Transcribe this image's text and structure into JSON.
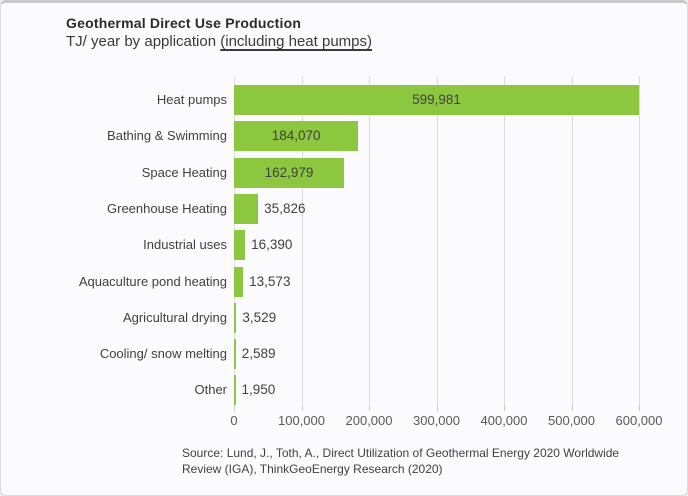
{
  "header": {
    "title": "Geothermal Direct Use Production",
    "subtitle_prefix": "TJ/ year by application ",
    "subtitle_underlined": "(including heat pumps)"
  },
  "chart_data": {
    "type": "bar",
    "orientation": "horizontal",
    "title": "Geothermal Direct Use Production",
    "subtitle": "TJ/ year by application (including heat pumps)",
    "xlabel": "",
    "ylabel": "",
    "categories": [
      "Heat pumps",
      "Bathing & Swimming",
      "Space Heating",
      "Greenhouse Heating",
      "Industrial uses",
      "Aquaculture pond heating",
      "Agricultural drying",
      "Cooling/ snow melting",
      "Other"
    ],
    "values": [
      599981,
      184070,
      162979,
      35826,
      16390,
      13573,
      3529,
      2589,
      1950
    ],
    "value_labels": [
      "599,981",
      "184,070",
      "162,979",
      "35,826",
      "16,390",
      "13,573",
      "3,529",
      "2,589",
      "1,950"
    ],
    "xlim": [
      0,
      600000
    ],
    "x_ticks": [
      0,
      100000,
      200000,
      300000,
      400000,
      500000,
      600000
    ],
    "x_tick_labels": [
      "0",
      "100,000",
      "200,000",
      "300,000",
      "400,000",
      "500,000",
      "600,000"
    ],
    "bar_color": "#8dc63f",
    "gridlines": true,
    "legend": false
  },
  "footer": {
    "source_line1": "Source: Lund, J., Toth, A., Direct Utilization of Geothermal Energy 2020 Worldwide",
    "source_line2": "Review (IGA), ThinkGeoEnergy Research (2020)"
  }
}
